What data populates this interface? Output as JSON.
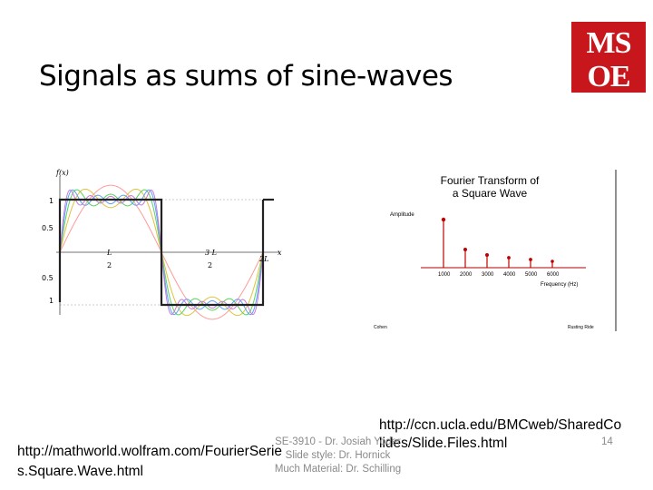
{
  "slide": {
    "title": "Signals as sums of sine-waves",
    "page_number": "14"
  },
  "logo": {
    "text": "MSOE",
    "color": "#c8161d"
  },
  "left_figure": {
    "fx_label": "f(x)",
    "y_labels": [
      "1",
      "0.5",
      "0.5",
      "1"
    ],
    "x_labels": [
      "L",
      "2",
      "3 L",
      "2",
      "2L",
      "x"
    ]
  },
  "right_figure": {
    "title_line1": "Fourier Transform of",
    "title_line2": "a Square Wave",
    "amplitude_label": "Amplitude",
    "frequency_label": "Frequency (Hz)",
    "tick_labels": [
      "1000",
      "2000",
      "3000",
      "4000",
      "5000",
      "6000"
    ],
    "footer_left": "Cohen",
    "footer_right": "Rusting Ride"
  },
  "links": {
    "right_line1": "http://ccn.ucla.edu/BMCweb/SharedCo",
    "right_line2": "lides/Slide.Files.html",
    "left_line1": "http://mathworld.wolfram.com/FourierSerie",
    "left_line2": "s.Square.Wave.html"
  },
  "footer": {
    "line1": "SE-3910 - Dr. Josiah Yoder",
    "line2": "Slide style: Dr. Hornick",
    "line3": "Much Material: Dr. Schilling"
  }
}
